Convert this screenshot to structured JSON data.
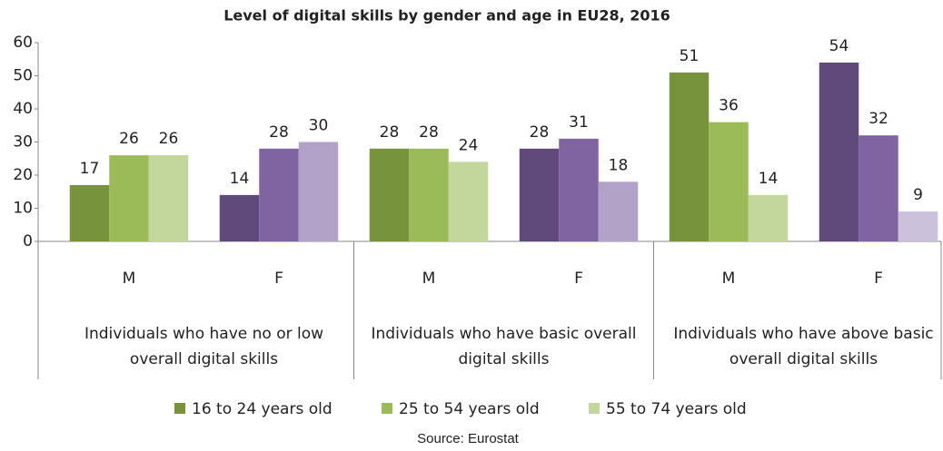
{
  "chart_data": {
    "type": "bar",
    "title": "Level of digital skills by gender and age in EU28, 2016",
    "categories": [
      "M",
      "F",
      "M",
      "F",
      "M",
      "F"
    ],
    "category_groups": [
      "Individuals who have no or low overall digital skills",
      "Individuals who have basic overall digital skills",
      "Individuals who have above basic overall digital skills"
    ],
    "series": [
      {
        "name": "16 to 24 years old",
        "color": "#77933c",
        "colors": [
          "#77933c",
          "#604a7b",
          "#77933c",
          "#604a7b",
          "#77933c",
          "#604a7b"
        ],
        "values": [
          17,
          14,
          28,
          28,
          51,
          54
        ]
      },
      {
        "name": "25 to 54 years old",
        "color": "#9bbb59",
        "colors": [
          "#9bbb59",
          "#8064a2",
          "#9bbb59",
          "#8064a2",
          "#9bbb59",
          "#8064a2"
        ],
        "values": [
          26,
          28,
          28,
          31,
          36,
          32
        ]
      },
      {
        "name": "55 to 74 years old",
        "color": "#c3d69b",
        "colors": [
          "#c3d69b",
          "#b3a2c7",
          "#c3d69b",
          "#b3a2c7",
          "#c3d69b",
          "#ccc1da"
        ],
        "values": [
          26,
          30,
          24,
          18,
          14,
          9
        ]
      }
    ],
    "ylim": [
      0,
      60
    ],
    "yticks": [
      0,
      10,
      20,
      30,
      40,
      50,
      60
    ],
    "source": "Source:  Eurostat"
  }
}
